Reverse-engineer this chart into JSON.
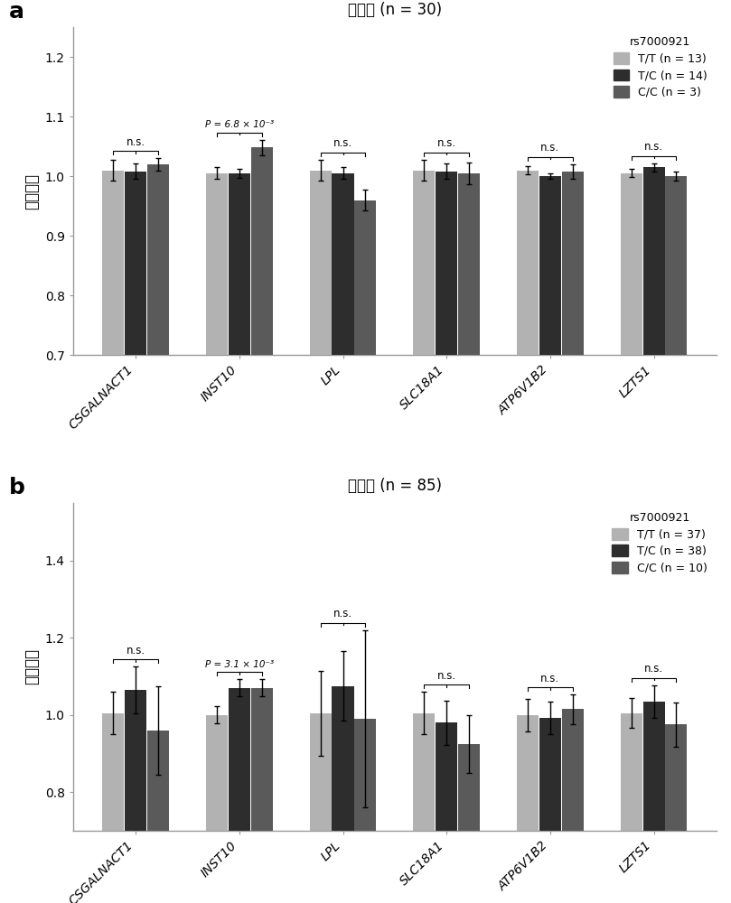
{
  "panel_a": {
    "title": "肝组织 (n = 30)",
    "legend_title": "rs7000921",
    "legend_labels": [
      "T/T (n = 13)",
      "T/C (n = 14)",
      "C/C (n = 3)"
    ],
    "categories": [
      "CSGALNACT1",
      "INST10",
      "LPL",
      "SLC18A1",
      "ATP6V1B2",
      "LZTS1"
    ],
    "bar_values": [
      [
        1.01,
        1.008,
        1.02
      ],
      [
        1.005,
        1.005,
        1.048
      ],
      [
        1.01,
        1.005,
        0.96
      ],
      [
        1.01,
        1.008,
        1.005
      ],
      [
        1.01,
        1.0,
        1.008
      ],
      [
        1.005,
        1.015,
        1.0
      ]
    ],
    "error_values": [
      [
        0.018,
        0.013,
        0.01
      ],
      [
        0.01,
        0.008,
        0.013
      ],
      [
        0.018,
        0.01,
        0.018
      ],
      [
        0.018,
        0.013,
        0.018
      ],
      [
        0.007,
        0.004,
        0.012
      ],
      [
        0.007,
        0.007,
        0.008
      ]
    ],
    "significance": [
      "n.s.",
      "P = 6.8 × 10⁻³",
      "n.s.",
      "n.s.",
      "n.s.",
      "n.s."
    ],
    "sig_is_pval": [
      false,
      true,
      false,
      false,
      false,
      false
    ],
    "ylim": [
      0.7,
      1.25
    ],
    "yticks": [
      0.7,
      0.8,
      0.9,
      1.0,
      1.1,
      1.2
    ],
    "ylabel": "基因表达"
  },
  "panel_b": {
    "title": "肝组织 (n = 85)",
    "legend_title": "rs7000921",
    "legend_labels": [
      "T/T (n = 37)",
      "T/C (n = 38)",
      "C/C (n = 10)"
    ],
    "categories": [
      "CSGALNACT1",
      "INST10",
      "LPL",
      "SLC18A1",
      "ATP6V1B2",
      "LZTS1"
    ],
    "bar_values": [
      [
        1.005,
        1.065,
        0.96
      ],
      [
        1.0,
        1.07,
        1.07
      ],
      [
        1.005,
        1.075,
        0.99
      ],
      [
        1.005,
        0.98,
        0.925
      ],
      [
        1.0,
        0.992,
        1.015
      ],
      [
        1.005,
        1.035,
        0.975
      ]
    ],
    "error_values": [
      [
        0.055,
        0.06,
        0.115
      ],
      [
        0.022,
        0.022,
        0.022
      ],
      [
        0.11,
        0.09,
        0.23
      ],
      [
        0.055,
        0.058,
        0.075
      ],
      [
        0.042,
        0.042,
        0.038
      ],
      [
        0.038,
        0.042,
        0.058
      ]
    ],
    "significance": [
      "n.s.",
      "P = 3.1 × 10⁻³",
      "n.s.",
      "n.s.",
      "n.s.",
      "n.s."
    ],
    "sig_is_pval": [
      false,
      true,
      false,
      false,
      false,
      false
    ],
    "ylim": [
      0.7,
      1.55
    ],
    "yticks": [
      0.8,
      1.0,
      1.2,
      1.4
    ],
    "ylabel": "基因表达"
  },
  "bar_colors": [
    "#b2b2b2",
    "#2d2d2d",
    "#5a5a5a"
  ],
  "background_color": "#ffffff",
  "panel_labels": [
    "a",
    "b"
  ]
}
